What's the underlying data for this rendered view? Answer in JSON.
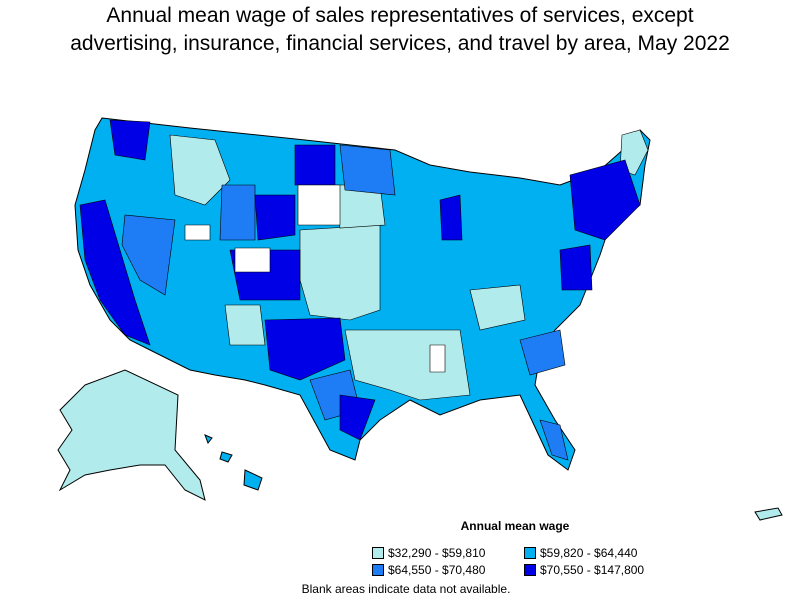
{
  "title_line1": "Annual mean wage of sales representatives of services, except",
  "title_line2": "advertising, insurance, financial services, and travel by area, May 2022",
  "legend": {
    "title": "Annual mean wage",
    "items": [
      {
        "label": "$32,290 - $59,810",
        "color": "#b2ebeb"
      },
      {
        "label": "$59,820 - $64,440",
        "color": "#00b0f0"
      },
      {
        "label": "$64,550 - $70,480",
        "color": "#1e7cf5"
      },
      {
        "label": "$70,550 - $147,800",
        "color": "#0000e6"
      }
    ]
  },
  "footnote": "Blank areas indicate data not available.",
  "colors": {
    "q1": "#b2ebeb",
    "q2": "#00b0f0",
    "q3": "#1e7cf5",
    "q4": "#0000e6",
    "na": "#ffffff",
    "border": "#000000"
  }
}
